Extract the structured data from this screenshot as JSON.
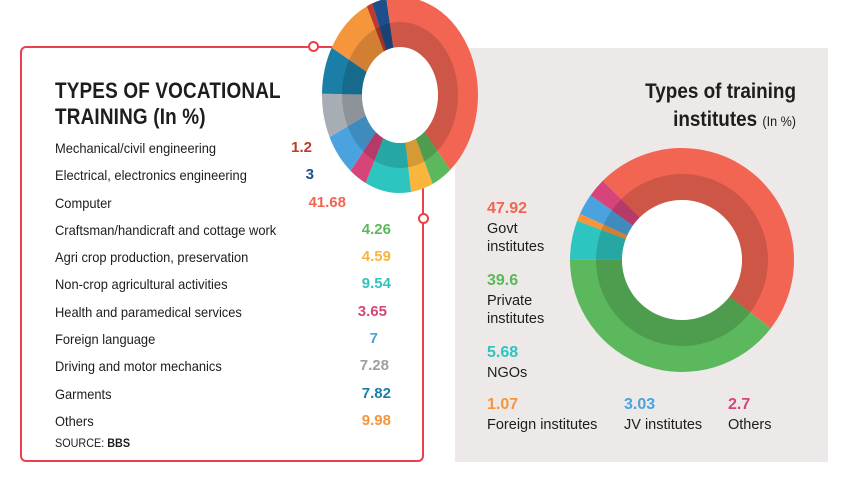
{
  "left_panel": {
    "title_line1": "TYPES OF VOCATIONAL",
    "title_line2": "TRAINING (In %)",
    "source_prefix": "SOURCE: ",
    "source_name": "BBS"
  },
  "right_panel": {
    "title_line1": "Types of training",
    "title_line2": "institutes",
    "title_unit": "(In %)"
  },
  "chart_data": [
    {
      "type": "pie",
      "title": "TYPES OF VOCATIONAL TRAINING (In %)",
      "donut": true,
      "categories": [
        "Mechanical/civil engineering",
        "Electrical, electronics engineering",
        "Computer",
        "Craftsman/handicraft and cottage work",
        "Agri crop production, preservation",
        "Non-crop agricultural activities",
        "Health and paramedical services",
        "Foreign language",
        "Driving and motor mechanics",
        "Garments",
        "Others"
      ],
      "values": [
        1.2,
        3,
        41.68,
        4.26,
        4.59,
        9.54,
        3.65,
        7,
        7.28,
        7.82,
        9.98
      ],
      "value_labels": [
        "1.2",
        "3",
        "41.68",
        "4.26",
        "4.59",
        "9.54",
        "3.65",
        "7",
        "7.28",
        "7.82",
        "9.98"
      ],
      "colors": [
        "#c0392b",
        "#1f4e8c",
        "#f26552",
        "#5cb85c",
        "#f9b53d",
        "#2ec4c0",
        "#d6447a",
        "#4aa3df",
        "#a7adb4",
        "#1a7ea6",
        "#f5953c"
      ],
      "source": "SOURCE: BBS"
    },
    {
      "type": "pie",
      "title": "Types of training institutes (In %)",
      "donut": true,
      "categories": [
        "Govt institutes",
        "Private institutes",
        "NGOs",
        "Foreign institutes",
        "JV institutes",
        "Others"
      ],
      "label_lines": [
        [
          "Govt",
          "institutes"
        ],
        [
          "Private",
          "institutes"
        ],
        [
          "NGOs"
        ],
        [
          "Foreign institutes"
        ],
        [
          "JV institutes"
        ],
        [
          "Others"
        ]
      ],
      "values": [
        47.92,
        39.6,
        5.68,
        1.07,
        3.03,
        2.7
      ],
      "value_labels": [
        "47.92",
        "39.6",
        "5.68",
        "1.07",
        "3.03",
        "2.7"
      ],
      "colors": [
        "#f26552",
        "#5cb85c",
        "#2ec4c0",
        "#f5953c",
        "#4aa3df",
        "#d6447a"
      ]
    }
  ]
}
